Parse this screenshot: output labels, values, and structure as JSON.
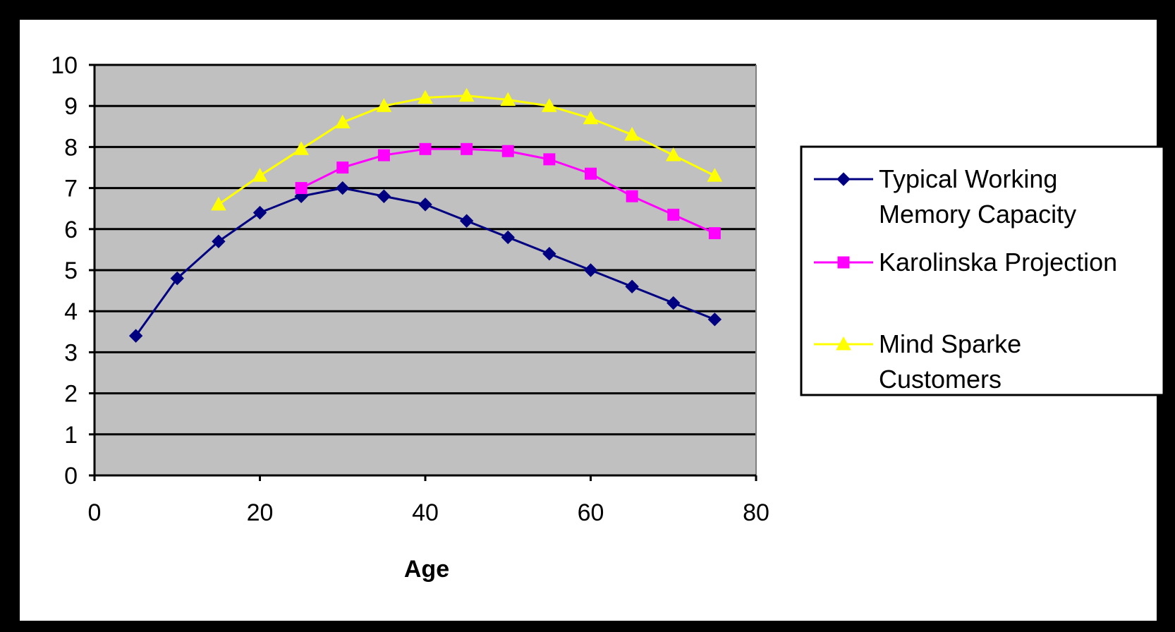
{
  "chart_data": {
    "type": "line",
    "title": "",
    "xlabel": "Age",
    "ylabel": "",
    "xlim": [
      0,
      80
    ],
    "ylim": [
      0,
      10
    ],
    "x_ticks": [
      "0",
      "20",
      "40",
      "60",
      "80"
    ],
    "y_ticks": [
      "0",
      "1",
      "2",
      "3",
      "4",
      "5",
      "6",
      "7",
      "8",
      "9",
      "10"
    ],
    "grid": true,
    "plot_background": "#C0C0C0",
    "legend_position": "right",
    "series": [
      {
        "name_lines": [
          "Typical Working",
          "Memory Capacity"
        ],
        "name": "Typical Working Memory Capacity",
        "color": "#000080",
        "marker": "diamond",
        "x": [
          5,
          10,
          15,
          20,
          25,
          30,
          35,
          40,
          45,
          50,
          55,
          60,
          65,
          70,
          75
        ],
        "y": [
          3.4,
          4.8,
          5.7,
          6.4,
          6.8,
          7.0,
          6.8,
          6.6,
          6.2,
          5.8,
          5.4,
          5.0,
          4.6,
          4.2,
          3.8
        ]
      },
      {
        "name_lines": [
          "Karolinska Projection"
        ],
        "name": "Karolinska Projection",
        "color": "#FF00FF",
        "marker": "square",
        "x": [
          25,
          30,
          35,
          40,
          45,
          50,
          55,
          60,
          65,
          70,
          75
        ],
        "y": [
          7.0,
          7.5,
          7.8,
          7.95,
          7.95,
          7.9,
          7.7,
          7.35,
          6.8,
          6.35,
          5.9
        ]
      },
      {
        "name_lines": [
          "Mind Sparke",
          "Customers"
        ],
        "name": "Mind Sparke Customers",
        "color": "#FFFF00",
        "marker": "triangle",
        "x": [
          15,
          20,
          25,
          30,
          35,
          40,
          45,
          50,
          55,
          60,
          65,
          70,
          75
        ],
        "y": [
          6.6,
          7.3,
          7.95,
          8.6,
          9.0,
          9.2,
          9.25,
          9.15,
          9.0,
          8.7,
          8.3,
          7.8,
          7.3
        ]
      }
    ]
  }
}
